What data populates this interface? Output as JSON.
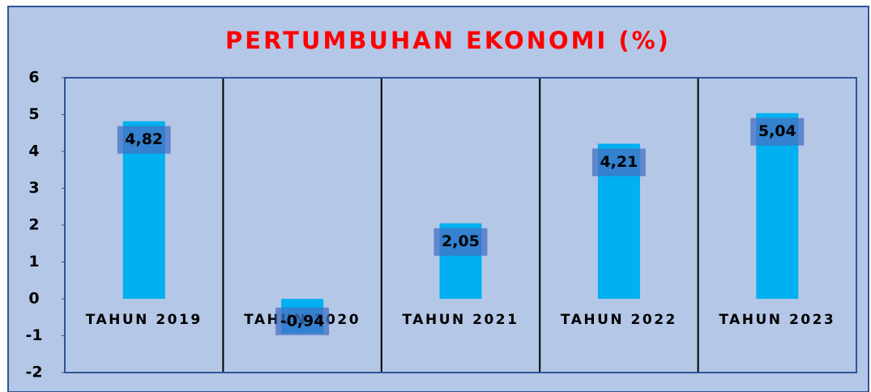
{
  "chart_data": {
    "type": "bar",
    "title": "PERTUMBUHAN EKONOMI (%)",
    "categories": [
      "TAHUN 2019",
      "TAHUN 2020",
      "TAHUN 2021",
      "TAHUN 2022",
      "TAHUN 2023"
    ],
    "values": [
      4.82,
      -0.94,
      2.05,
      4.21,
      5.04
    ],
    "value_labels": [
      "4,82",
      "-0,94",
      "2,05",
      "4,21",
      "5,04"
    ],
    "color": "#00b0f0",
    "ylim": [
      -2,
      6
    ],
    "yticks": [
      -2,
      -1,
      0,
      1,
      2,
      3,
      4,
      5,
      6
    ],
    "grid": false
  }
}
